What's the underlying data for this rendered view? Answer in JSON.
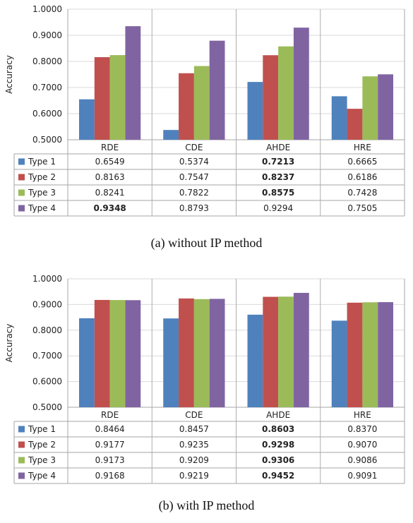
{
  "colors": {
    "series": [
      "#4f81bd",
      "#c0504d",
      "#9bbb59",
      "#8064a2"
    ],
    "grid": "#d9d9d9",
    "axis": "#a6a6a6"
  },
  "chart_data": [
    {
      "type": "bar",
      "caption": "(a)  without IP method",
      "ylabel": "Accuracy",
      "ylim": [
        0.5,
        1.0
      ],
      "yticks": [
        "0.5000",
        "0.6000",
        "0.7000",
        "0.8000",
        "0.9000",
        "1.0000"
      ],
      "grid": true,
      "legend": "data-table",
      "categories": [
        "RDE",
        "CDE",
        "AHDE",
        "HRE"
      ],
      "series": [
        {
          "name": "Type 1",
          "values": [
            0.6549,
            0.5374,
            0.7213,
            0.6665
          ],
          "labels": [
            "0.6549",
            "0.5374",
            "0.7213",
            "0.6665"
          ],
          "bold": [
            false,
            false,
            true,
            false
          ]
        },
        {
          "name": "Type 2",
          "values": [
            0.8163,
            0.7547,
            0.8237,
            0.6186
          ],
          "labels": [
            "0.8163",
            "0.7547",
            "0.8237",
            "0.6186"
          ],
          "bold": [
            false,
            false,
            true,
            false
          ]
        },
        {
          "name": "Type 3",
          "values": [
            0.8241,
            0.7822,
            0.8575,
            0.7428
          ],
          "labels": [
            "0.8241",
            "0.7822",
            "0.8575",
            "0.7428"
          ],
          "bold": [
            false,
            false,
            true,
            false
          ]
        },
        {
          "name": "Type 4",
          "values": [
            0.9348,
            0.8793,
            0.9294,
            0.7505
          ],
          "labels": [
            "0.9348",
            "0.8793",
            "0.9294",
            "0.7505"
          ],
          "bold": [
            true,
            false,
            false,
            false
          ]
        }
      ]
    },
    {
      "type": "bar",
      "caption": "(b)  with IP method",
      "ylabel": "Accuracy",
      "ylim": [
        0.5,
        1.0
      ],
      "yticks": [
        "0.5000",
        "0.6000",
        "0.7000",
        "0.8000",
        "0.9000",
        "1.0000"
      ],
      "grid": true,
      "legend": "data-table",
      "categories": [
        "RDE",
        "CDE",
        "AHDE",
        "HRE"
      ],
      "series": [
        {
          "name": "Type 1",
          "values": [
            0.8464,
            0.8457,
            0.8603,
            0.837
          ],
          "labels": [
            "0.8464",
            "0.8457",
            "0.8603",
            "0.8370"
          ],
          "bold": [
            false,
            false,
            true,
            false
          ]
        },
        {
          "name": "Type 2",
          "values": [
            0.9177,
            0.9235,
            0.9298,
            0.907
          ],
          "labels": [
            "0.9177",
            "0.9235",
            "0.9298",
            "0.9070"
          ],
          "bold": [
            false,
            false,
            true,
            false
          ]
        },
        {
          "name": "Type 3",
          "values": [
            0.9173,
            0.9209,
            0.9306,
            0.9086
          ],
          "labels": [
            "0.9173",
            "0.9209",
            "0.9306",
            "0.9086"
          ],
          "bold": [
            false,
            false,
            true,
            false
          ]
        },
        {
          "name": "Type 4",
          "values": [
            0.9168,
            0.9219,
            0.9452,
            0.9091
          ],
          "labels": [
            "0.9168",
            "0.9219",
            "0.9452",
            "0.9091"
          ],
          "bold": [
            false,
            false,
            true,
            false
          ]
        }
      ]
    }
  ]
}
